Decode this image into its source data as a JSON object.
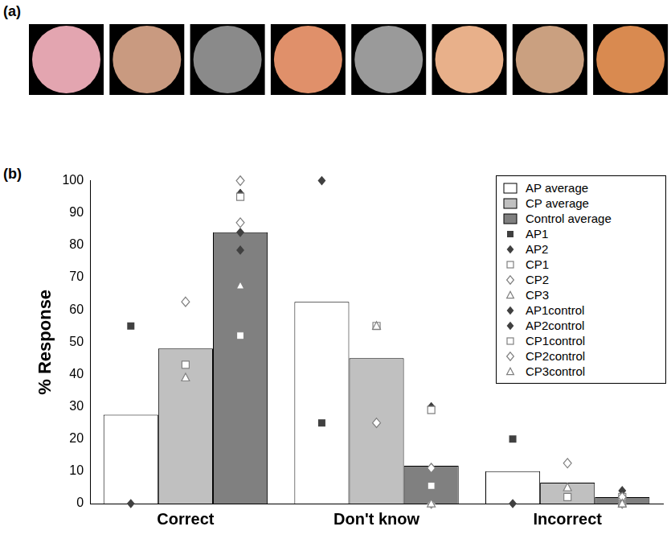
{
  "panel_labels": [
    "(a)",
    "(b)"
  ],
  "chart_data": {
    "type": "bar",
    "y_label": "% Response",
    "categories": [
      "Correct",
      "Don't know",
      "Incorrect"
    ],
    "ylim": [
      0,
      100
    ],
    "yticks": [
      0,
      10,
      20,
      30,
      40,
      50,
      60,
      70,
      80,
      90,
      100
    ],
    "grid": false,
    "legend": "top right",
    "series": [
      {
        "name": "AP average",
        "color": "#ffffff",
        "values": [
          27.5,
          62.5,
          10
        ],
        "points": [
          {
            "name": "AP1",
            "type": "scatter",
            "marker": "square",
            "color": "#404040",
            "values": [
              [
                55
              ],
              [
                25
              ],
              [
                20
              ]
            ]
          },
          {
            "name": "AP2",
            "type": "scatter",
            "marker": "diamond",
            "color": "#404040",
            "values": [
              [
                0
              ],
              [
                100
              ],
              [
                0
              ]
            ]
          }
        ]
      },
      {
        "name": "CP average",
        "color": "#c0c0c0",
        "values": [
          48,
          45,
          6.5
        ],
        "points": [
          {
            "name": "CP1",
            "type": "scatter",
            "marker": "open square",
            "color": "#808080",
            "values": [
              [
                43
              ],
              [
                55
              ],
              [
                2
              ]
            ]
          },
          {
            "name": "CP2",
            "type": "scatter",
            "marker": "open diamond",
            "color": "#808080",
            "values": [
              [
                62.5
              ],
              [
                25
              ],
              [
                12.5
              ]
            ]
          },
          {
            "name": "CP3",
            "type": "scatter",
            "marker": "open triangle",
            "color": "#808080",
            "values": [
              [
                39
              ],
              [
                55
              ],
              [
                5
              ]
            ]
          }
        ]
      },
      {
        "name": "Control average",
        "color": "#808080",
        "values": [
          84,
          11.7,
          2
        ],
        "points": [
          {
            "name": "AP1control",
            "type": "scatter",
            "marker": "diamond",
            "color": "#404040",
            "values": [
              [
                96
              ],
              [
                11
              ],
              [
                4
              ]
            ]
          },
          {
            "name": "AP2control",
            "type": "scatter",
            "marker": "diamond",
            "color": "#404040",
            "values": [
              [
                96,
                84,
                78.5
              ],
              [
                30,
                11,
                0
              ],
              [
                1,
                2,
                0
              ]
            ]
          },
          {
            "name": "CP1control",
            "type": "scatter",
            "marker": "open square",
            "color": "#808080",
            "values": [
              [
                95,
                52
              ],
              [
                29,
                5.5
              ],
              [
                0,
                2
              ]
            ]
          },
          {
            "name": "CP2control",
            "type": "scatter",
            "marker": "open diamond",
            "color": "#808080",
            "values": [
              [
                100,
                87
              ],
              [
                0,
                11
              ],
              [
                0,
                2
              ]
            ]
          },
          {
            "name": "CP3control",
            "type": "scatter",
            "marker": "open triangle",
            "color": "#808080",
            "values": [
              [
                67.5
              ],
              [
                0
              ],
              [
                0
              ]
            ]
          }
        ]
      }
    ]
  }
}
